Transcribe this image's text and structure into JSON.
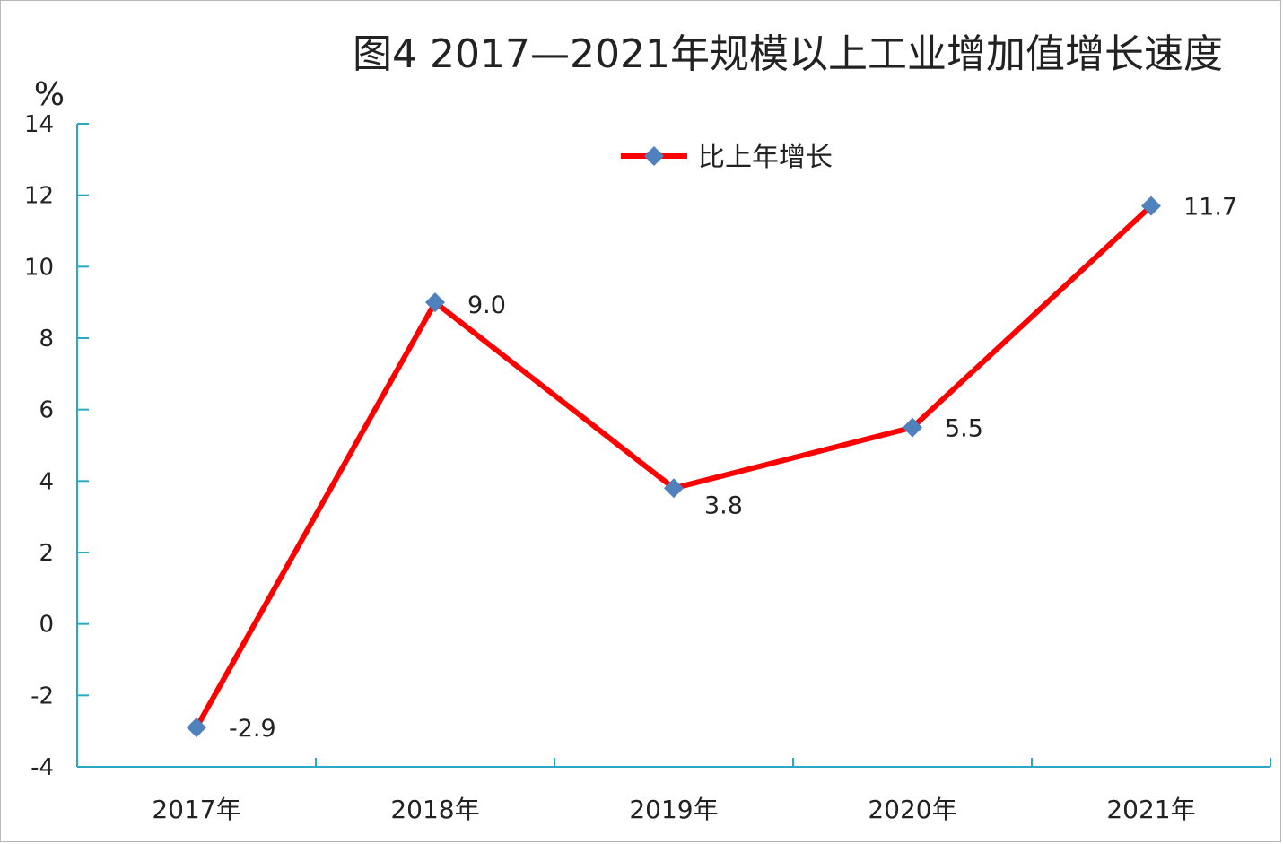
{
  "chart_data": {
    "type": "line",
    "title": "图4 2017—2021年规模以上工业增加值增长速度",
    "y_unit": "%",
    "categories": [
      "2017年",
      "2018年",
      "2019年",
      "2020年",
      "2021年"
    ],
    "series": [
      {
        "name": "比上年增长",
        "values": [
          -2.9,
          9.0,
          3.8,
          5.5,
          11.7
        ],
        "value_labels": [
          "-2.9",
          "9.0",
          "3.8",
          "5.5",
          "11.7"
        ],
        "line_color": "#ff0000",
        "marker_color": "#4f81bd",
        "marker": "diamond"
      }
    ],
    "ylim": [
      -4,
      14
    ],
    "y_ticks": [
      -4,
      -2,
      0,
      2,
      4,
      6,
      8,
      10,
      12,
      14
    ],
    "legend_position": "top-center",
    "grid": false,
    "axis_color": "#2aa8c4"
  }
}
